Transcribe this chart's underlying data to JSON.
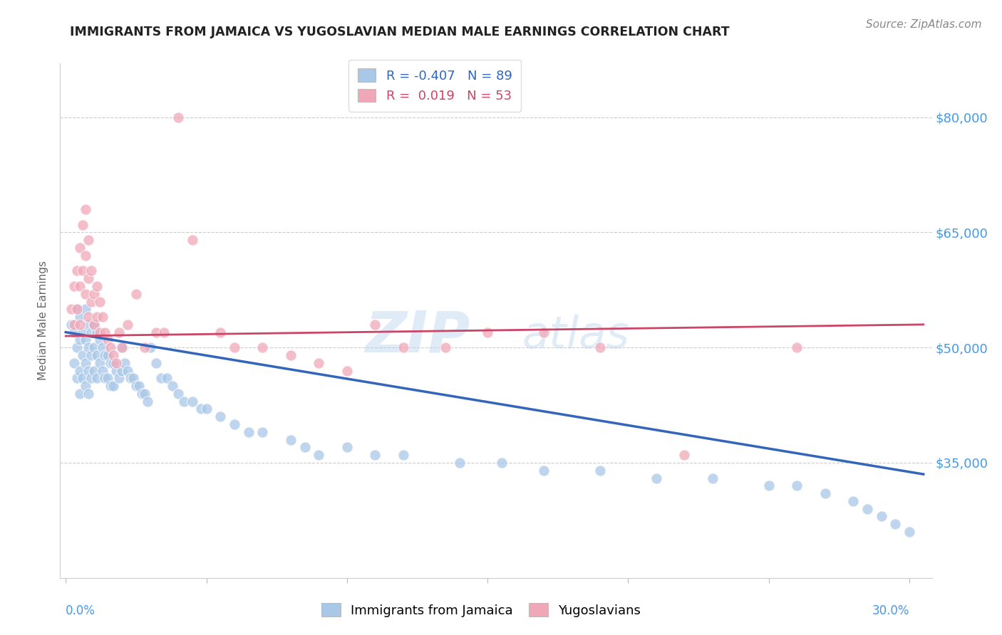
{
  "title": "IMMIGRANTS FROM JAMAICA VS YUGOSLAVIAN MEDIAN MALE EARNINGS CORRELATION CHART",
  "source": "Source: ZipAtlas.com",
  "ylabel": "Median Male Earnings",
  "ytick_labels": [
    "$80,000",
    "$65,000",
    "$50,000",
    "$35,000"
  ],
  "ytick_values": [
    80000,
    65000,
    50000,
    35000
  ],
  "ymin": 20000,
  "ymax": 87000,
  "xmin": -0.002,
  "xmax": 0.308,
  "watermark_line1": "ZIP",
  "watermark_line2": "atlas",
  "legend_blue_r": "R = -0.407",
  "legend_blue_n": "N = 89",
  "legend_pink_r": "R =  0.019",
  "legend_pink_n": "N = 53",
  "blue_color": "#A8C8E8",
  "pink_color": "#F0A8B8",
  "blue_line_color": "#3366BB",
  "pink_line_color": "#CC4466",
  "axis_label_color": "#4499EE",
  "jamaica_x": [
    0.002,
    0.003,
    0.003,
    0.004,
    0.004,
    0.004,
    0.005,
    0.005,
    0.005,
    0.005,
    0.006,
    0.006,
    0.006,
    0.007,
    0.007,
    0.007,
    0.007,
    0.008,
    0.008,
    0.008,
    0.008,
    0.009,
    0.009,
    0.009,
    0.01,
    0.01,
    0.01,
    0.011,
    0.011,
    0.011,
    0.012,
    0.012,
    0.013,
    0.013,
    0.014,
    0.014,
    0.015,
    0.015,
    0.016,
    0.016,
    0.017,
    0.017,
    0.018,
    0.019,
    0.02,
    0.02,
    0.021,
    0.022,
    0.023,
    0.024,
    0.025,
    0.026,
    0.027,
    0.028,
    0.029,
    0.03,
    0.032,
    0.034,
    0.036,
    0.038,
    0.04,
    0.042,
    0.045,
    0.048,
    0.05,
    0.055,
    0.06,
    0.065,
    0.07,
    0.08,
    0.085,
    0.09,
    0.1,
    0.11,
    0.12,
    0.14,
    0.155,
    0.17,
    0.19,
    0.21,
    0.23,
    0.25,
    0.26,
    0.27,
    0.28,
    0.285,
    0.29,
    0.295,
    0.3
  ],
  "jamaica_y": [
    53000,
    52000,
    48000,
    55000,
    50000,
    46000,
    54000,
    51000,
    47000,
    44000,
    52000,
    49000,
    46000,
    55000,
    51000,
    48000,
    45000,
    53000,
    50000,
    47000,
    44000,
    52000,
    49000,
    46000,
    53000,
    50000,
    47000,
    52000,
    49000,
    46000,
    51000,
    48000,
    50000,
    47000,
    49000,
    46000,
    49000,
    46000,
    48000,
    45000,
    48000,
    45000,
    47000,
    46000,
    50000,
    47000,
    48000,
    47000,
    46000,
    46000,
    45000,
    45000,
    44000,
    44000,
    43000,
    50000,
    48000,
    46000,
    46000,
    45000,
    44000,
    43000,
    43000,
    42000,
    42000,
    41000,
    40000,
    39000,
    39000,
    38000,
    37000,
    36000,
    37000,
    36000,
    36000,
    35000,
    35000,
    34000,
    34000,
    33000,
    33000,
    32000,
    32000,
    31000,
    30000,
    29000,
    28000,
    27000,
    26000
  ],
  "yugoslavia_x": [
    0.002,
    0.003,
    0.003,
    0.004,
    0.004,
    0.005,
    0.005,
    0.005,
    0.006,
    0.006,
    0.007,
    0.007,
    0.007,
    0.008,
    0.008,
    0.008,
    0.009,
    0.009,
    0.01,
    0.01,
    0.011,
    0.011,
    0.012,
    0.012,
    0.013,
    0.014,
    0.015,
    0.016,
    0.017,
    0.018,
    0.019,
    0.02,
    0.022,
    0.025,
    0.028,
    0.032,
    0.035,
    0.04,
    0.045,
    0.055,
    0.06,
    0.07,
    0.08,
    0.09,
    0.1,
    0.11,
    0.12,
    0.135,
    0.15,
    0.17,
    0.19,
    0.22,
    0.26
  ],
  "yugoslavia_y": [
    55000,
    58000,
    53000,
    60000,
    55000,
    63000,
    58000,
    53000,
    66000,
    60000,
    68000,
    62000,
    57000,
    64000,
    59000,
    54000,
    60000,
    56000,
    57000,
    53000,
    58000,
    54000,
    56000,
    52000,
    54000,
    52000,
    51000,
    50000,
    49000,
    48000,
    52000,
    50000,
    53000,
    57000,
    50000,
    52000,
    52000,
    80000,
    64000,
    52000,
    50000,
    50000,
    49000,
    48000,
    47000,
    53000,
    50000,
    50000,
    52000,
    52000,
    50000,
    36000,
    50000
  ],
  "blue_trendline_x": [
    0.0,
    0.305
  ],
  "blue_trendline_y": [
    52000,
    33500
  ],
  "pink_trendline_x": [
    0.0,
    0.305
  ],
  "pink_trendline_y": [
    51500,
    53000
  ]
}
